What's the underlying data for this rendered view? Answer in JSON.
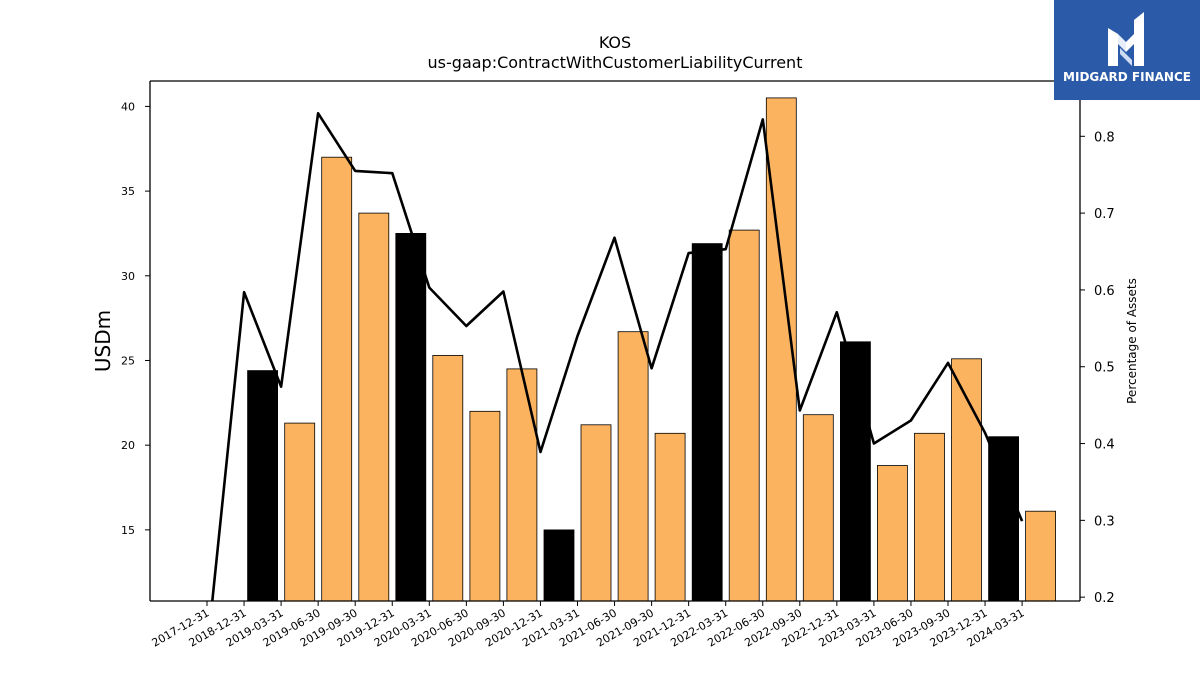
{
  "chart_data": {
    "type": "bar",
    "title": "KOS",
    "subtitle": "us-gaap:ContractWithCustomerLiabilityCurrent",
    "ylabel": "USDm",
    "y2label": "Percentage of Assets",
    "ylim": [
      10.8,
      41.5
    ],
    "y2lim": [
      0.195,
      0.872
    ],
    "yticks": [
      "15",
      "20",
      "25",
      "30",
      "35",
      "40"
    ],
    "y2ticks": [
      "0.2",
      "0.3",
      "0.4",
      "0.5",
      "0.6",
      "0.7",
      "0.8"
    ],
    "categories": [
      "2017-12-31",
      "2018-12-31",
      "2019-03-31",
      "2019-06-30",
      "2019-09-30",
      "2019-12-31",
      "2020-03-31",
      "2020-06-30",
      "2020-09-30",
      "2020-12-31",
      "2021-03-31",
      "2021-06-30",
      "2021-09-30",
      "2021-12-31",
      "2022-03-31",
      "2022-06-30",
      "2022-09-30",
      "2022-12-31",
      "2023-03-31",
      "2023-06-30",
      "2023-09-30",
      "2023-12-31",
      "2024-03-31"
    ],
    "series": [
      {
        "type": "bar",
        "values": [
          null,
          24.4,
          21.3,
          37.0,
          33.7,
          32.5,
          25.3,
          22.0,
          24.5,
          15.0,
          21.2,
          26.7,
          20.7,
          31.9,
          32.7,
          40.5,
          21.8,
          26.1,
          18.8,
          20.7,
          25.1,
          20.5,
          16.1
        ],
        "colors": [
          "#fbb360",
          "#000000",
          "#fbb360",
          "#fbb360",
          "#fbb360",
          "#000000",
          "#fbb360",
          "#fbb360",
          "#fbb360",
          "#000000",
          "#fbb360",
          "#fbb360",
          "#fbb360",
          "#000000",
          "#fbb360",
          "#fbb360",
          "#fbb360",
          "#000000",
          "#fbb360",
          "#fbb360",
          "#fbb360",
          "#000000",
          "#fbb360"
        ]
      },
      {
        "type": "line",
        "axis": "right",
        "color": "#000000",
        "values": [
          0.128,
          0.597,
          0.474,
          0.83,
          0.755,
          0.752,
          0.603,
          0.553,
          0.598,
          0.389,
          0.54,
          0.668,
          0.498,
          0.648,
          0.653,
          0.822,
          0.443,
          0.571,
          0.4,
          0.43,
          0.505,
          0.414,
          0.299
        ]
      }
    ],
    "grid": false,
    "legend": "none"
  },
  "logo": {
    "text": "MIDGARD FINANCE",
    "icon": "midgard-logo-icon",
    "background": "#2b5aa8"
  }
}
